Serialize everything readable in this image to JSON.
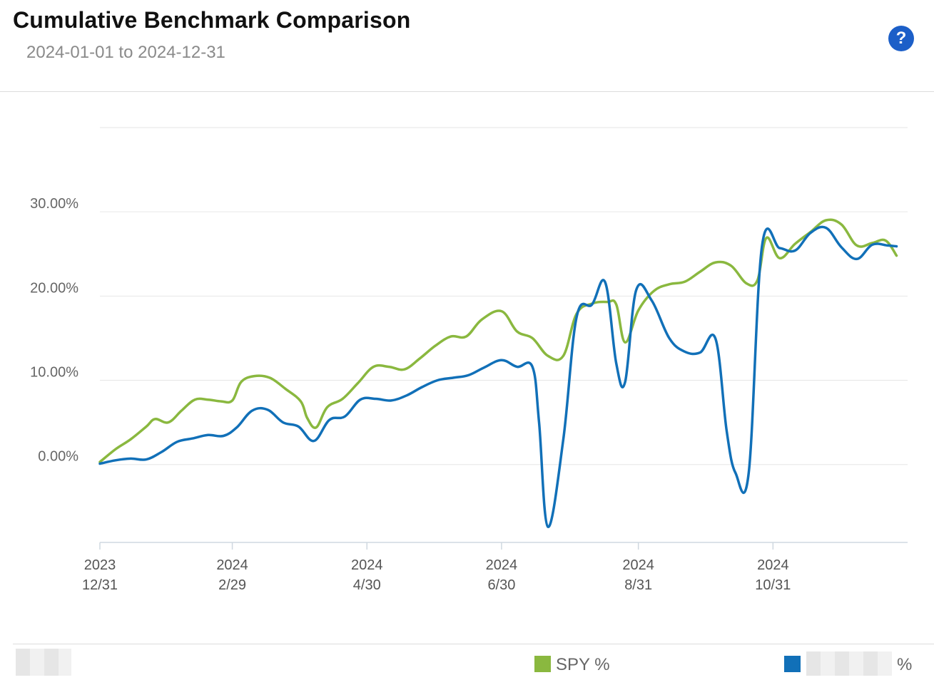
{
  "header": {
    "title": "Cumulative Benchmark Comparison",
    "date_range": "2024-01-01 to 2024-12-31",
    "help_label": "?"
  },
  "legend": {
    "spy_label": "SPY %",
    "spy_color": "#8ab83f",
    "portfolio_suffix": "%",
    "portfolio_color": "#1170b8"
  },
  "chart_data": {
    "type": "line",
    "title": "Cumulative Benchmark Comparison",
    "subtitle": "2024-01-01 to 2024-12-31",
    "ylim": [
      -9.25,
      40
    ],
    "yticks": [
      0,
      10,
      20,
      30
    ],
    "ytick_labels": [
      "0.00%",
      "10.00%",
      "20.00%",
      "30.00%"
    ],
    "grid": true,
    "x_ticks": [
      {
        "date": "2023-12-31",
        "label_top": "2023",
        "label_bottom": "12/31"
      },
      {
        "date": "2024-02-29",
        "label_top": "2024",
        "label_bottom": "2/29"
      },
      {
        "date": "2024-04-30",
        "label_top": "2024",
        "label_bottom": "4/30"
      },
      {
        "date": "2024-06-30",
        "label_top": "2024",
        "label_bottom": "6/30"
      },
      {
        "date": "2024-08-31",
        "label_top": "2024",
        "label_bottom": "8/31"
      },
      {
        "date": "2024-10-31",
        "label_top": "2024",
        "label_bottom": "10/31"
      }
    ],
    "x_start": "2023-12-31",
    "x_end": "2024-12-31",
    "series": [
      {
        "name": "SPY %",
        "color": "#8ab83f",
        "points": [
          [
            "2023-12-31",
            0.3
          ],
          [
            "2024-01-07",
            1.8
          ],
          [
            "2024-01-14",
            3.0
          ],
          [
            "2024-01-21",
            4.5
          ],
          [
            "2024-01-25",
            5.4
          ],
          [
            "2024-01-31",
            5.0
          ],
          [
            "2024-02-06",
            6.4
          ],
          [
            "2024-02-12",
            7.7
          ],
          [
            "2024-02-18",
            7.7
          ],
          [
            "2024-02-24",
            7.5
          ],
          [
            "2024-02-29",
            7.6
          ],
          [
            "2024-03-04",
            9.8
          ],
          [
            "2024-03-10",
            10.5
          ],
          [
            "2024-03-17",
            10.3
          ],
          [
            "2024-03-24",
            9.0
          ],
          [
            "2024-03-31",
            7.5
          ],
          [
            "2024-04-03",
            5.5
          ],
          [
            "2024-04-07",
            4.4
          ],
          [
            "2024-04-12",
            6.8
          ],
          [
            "2024-04-19",
            7.8
          ],
          [
            "2024-04-26",
            9.7
          ],
          [
            "2024-05-03",
            11.6
          ],
          [
            "2024-05-10",
            11.6
          ],
          [
            "2024-05-17",
            11.3
          ],
          [
            "2024-05-24",
            12.6
          ],
          [
            "2024-05-31",
            14.1
          ],
          [
            "2024-06-07",
            15.2
          ],
          [
            "2024-06-14",
            15.2
          ],
          [
            "2024-06-21",
            17.2
          ],
          [
            "2024-06-30",
            18.2
          ],
          [
            "2024-07-07",
            15.8
          ],
          [
            "2024-07-14",
            15.0
          ],
          [
            "2024-07-21",
            12.9
          ],
          [
            "2024-07-28",
            12.9
          ],
          [
            "2024-08-03",
            17.9
          ],
          [
            "2024-08-10",
            19.1
          ],
          [
            "2024-08-17",
            19.3
          ],
          [
            "2024-08-21",
            19.0
          ],
          [
            "2024-08-25",
            14.5
          ],
          [
            "2024-08-31",
            18.3
          ],
          [
            "2024-09-07",
            20.6
          ],
          [
            "2024-09-14",
            21.4
          ],
          [
            "2024-09-21",
            21.7
          ],
          [
            "2024-09-28",
            22.9
          ],
          [
            "2024-10-05",
            24.0
          ],
          [
            "2024-10-12",
            23.6
          ],
          [
            "2024-10-19",
            21.5
          ],
          [
            "2024-10-24",
            21.9
          ],
          [
            "2024-10-28",
            26.9
          ],
          [
            "2024-11-03",
            24.5
          ],
          [
            "2024-11-10",
            26.2
          ],
          [
            "2024-11-17",
            27.6
          ],
          [
            "2024-11-24",
            29.0
          ],
          [
            "2024-12-01",
            28.5
          ],
          [
            "2024-12-08",
            26.0
          ],
          [
            "2024-12-15",
            26.3
          ],
          [
            "2024-12-21",
            26.6
          ],
          [
            "2024-12-26",
            24.8
          ]
        ]
      },
      {
        "name": "",
        "color": "#1170b8",
        "points": [
          [
            "2023-12-31",
            0.1
          ],
          [
            "2024-01-07",
            0.5
          ],
          [
            "2024-01-14",
            0.7
          ],
          [
            "2024-01-21",
            0.6
          ],
          [
            "2024-01-28",
            1.5
          ],
          [
            "2024-02-04",
            2.7
          ],
          [
            "2024-02-11",
            3.1
          ],
          [
            "2024-02-18",
            3.5
          ],
          [
            "2024-02-25",
            3.4
          ],
          [
            "2024-03-02",
            4.4
          ],
          [
            "2024-03-09",
            6.4
          ],
          [
            "2024-03-16",
            6.5
          ],
          [
            "2024-03-23",
            5.0
          ],
          [
            "2024-03-30",
            4.5
          ],
          [
            "2024-04-06",
            2.8
          ],
          [
            "2024-04-13",
            5.3
          ],
          [
            "2024-04-20",
            5.7
          ],
          [
            "2024-04-27",
            7.7
          ],
          [
            "2024-05-04",
            7.8
          ],
          [
            "2024-05-11",
            7.6
          ],
          [
            "2024-05-18",
            8.2
          ],
          [
            "2024-05-25",
            9.2
          ],
          [
            "2024-06-01",
            10.0
          ],
          [
            "2024-06-08",
            10.3
          ],
          [
            "2024-06-15",
            10.6
          ],
          [
            "2024-06-22",
            11.5
          ],
          [
            "2024-06-30",
            12.4
          ],
          [
            "2024-07-07",
            11.6
          ],
          [
            "2024-07-14",
            11.6
          ],
          [
            "2024-07-17",
            5.0
          ],
          [
            "2024-07-21",
            -7.4
          ],
          [
            "2024-07-28",
            3.0
          ],
          [
            "2024-08-03",
            17.5
          ],
          [
            "2024-08-10",
            19.0
          ],
          [
            "2024-08-16",
            21.6
          ],
          [
            "2024-08-21",
            12.0
          ],
          [
            "2024-08-25",
            9.8
          ],
          [
            "2024-08-30",
            20.7
          ],
          [
            "2024-09-06",
            19.5
          ],
          [
            "2024-09-14",
            15.0
          ],
          [
            "2024-09-21",
            13.4
          ],
          [
            "2024-09-28",
            13.3
          ],
          [
            "2024-10-05",
            14.9
          ],
          [
            "2024-10-10",
            4.0
          ],
          [
            "2024-10-14",
            -1.0
          ],
          [
            "2024-10-20",
            -1.0
          ],
          [
            "2024-10-26",
            25.9
          ],
          [
            "2024-11-03",
            25.7
          ],
          [
            "2024-11-10",
            25.4
          ],
          [
            "2024-11-17",
            27.5
          ],
          [
            "2024-11-24",
            28.1
          ],
          [
            "2024-12-01",
            25.8
          ],
          [
            "2024-12-08",
            24.4
          ],
          [
            "2024-12-15",
            26.1
          ],
          [
            "2024-12-22",
            26.0
          ],
          [
            "2024-12-26",
            25.9
          ]
        ]
      }
    ]
  }
}
